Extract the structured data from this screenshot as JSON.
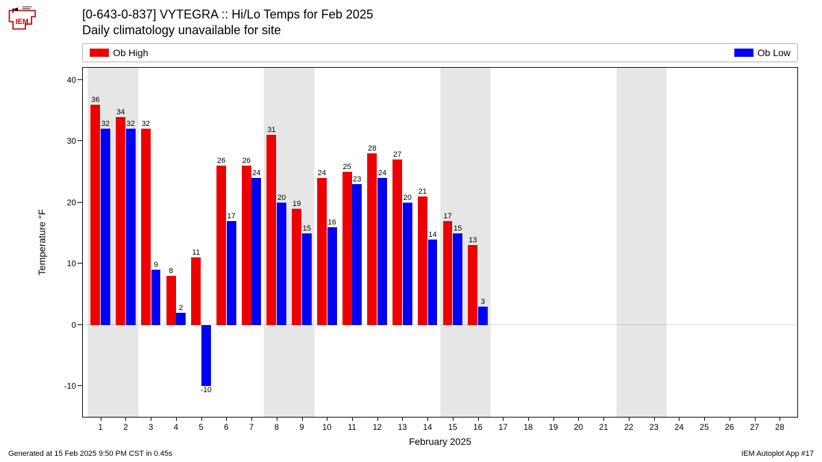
{
  "title_line1": "[0-643-0-837] VYTEGRA :: Hi/Lo Temps for Feb 2025",
  "title_line2": "Daily climatology unavailable for site",
  "legend": {
    "high_label": "Ob High",
    "low_label": "Ob Low"
  },
  "footer_left": "Generated at 15 Feb 2025 9:50 PM CST in 0.45s",
  "footer_right": "IEM Autoplot App #17",
  "chart": {
    "type": "bar",
    "xlabel": "February 2025",
    "ylabel": "Temperature °F",
    "ylim": [
      -15,
      42
    ],
    "yticks": [
      -10,
      0,
      10,
      20,
      30,
      40
    ],
    "xlim": [
      0.3,
      28.7
    ],
    "days": [
      1,
      2,
      3,
      4,
      5,
      6,
      7,
      8,
      9,
      10,
      11,
      12,
      13,
      14,
      15,
      16,
      17,
      18,
      19,
      20,
      21,
      22,
      23,
      24,
      25,
      26,
      27,
      28
    ],
    "high": [
      36,
      34,
      32,
      8,
      11,
      26,
      26,
      31,
      19,
      24,
      25,
      28,
      27,
      21,
      17,
      13,
      null,
      null,
      null,
      null,
      null,
      null,
      null,
      null,
      null,
      null,
      null,
      null
    ],
    "low": [
      32,
      32,
      9,
      2,
      -10,
      17,
      24,
      20,
      15,
      16,
      23,
      24,
      20,
      14,
      15,
      3,
      null,
      null,
      null,
      null,
      null,
      null,
      null,
      null,
      null,
      null,
      null,
      null
    ],
    "colors": {
      "high": "#ef0000",
      "low": "#0000f5",
      "shade": "#e6e6e6",
      "bg": "#ffffff",
      "text": "#000000"
    },
    "weekend_shade_ranges": [
      [
        1,
        2
      ],
      [
        8,
        9
      ],
      [
        15,
        16
      ],
      [
        22,
        23
      ]
    ],
    "bar_width": 0.38,
    "bar_gap": 0.02,
    "label_fontsize": 11,
    "axis_fontsize": 12,
    "title_fontsize": 18
  }
}
